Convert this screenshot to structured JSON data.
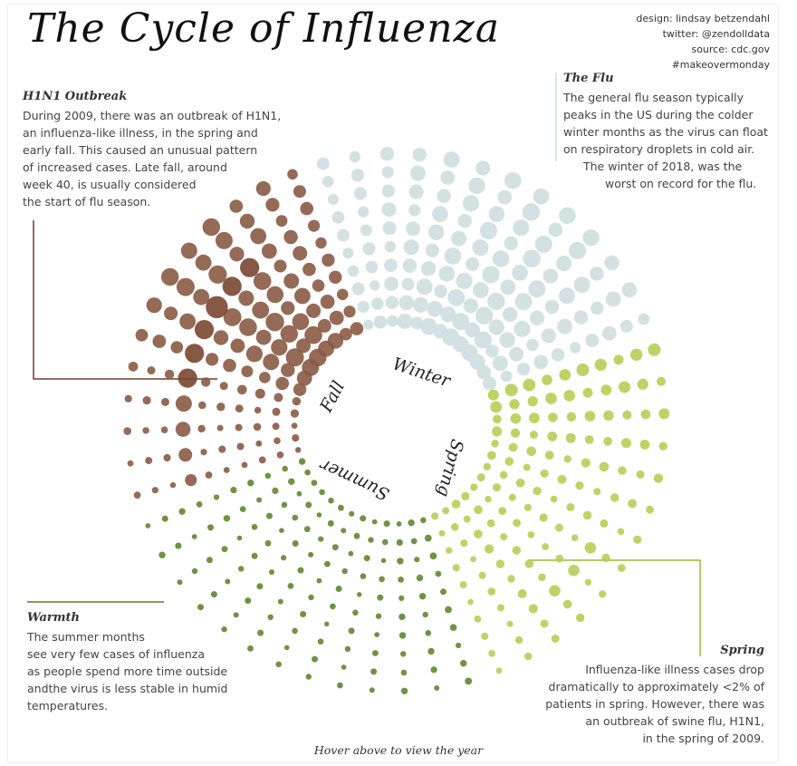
{
  "title": "The Cycle of Influenza",
  "credits": [
    "design: lindsay betzendahl",
    "twitter: @zendolldata",
    "source: cdc.gov",
    "#makeovermonday"
  ],
  "annotations": {
    "h1n1": {
      "heading": "H1N1 Outbreak",
      "lines": [
        "During 2009, there was an outbreak of H1N1,",
        "an influenza-like illness, in the spring and",
        "early fall. This caused an unusual pattern",
        "of increased cases. Late fall, around",
        "week 40, is usually considered",
        "the start of flu season."
      ]
    },
    "flu": {
      "heading": "The Flu",
      "lines": [
        "The general flu season typically",
        "peaks in the US during the colder",
        "winter months as the virus can float",
        "on respiratory droplets in cold air.",
        "The winter of 2018, was the",
        "worst on record for the flu."
      ]
    },
    "warmth": {
      "heading": "Warmth",
      "lines": [
        "The summer months",
        "see very few cases of influenza",
        "as people spend more time outside",
        "andthe virus is less stable in humid",
        "temperatures."
      ]
    },
    "spring": {
      "heading": "Spring",
      "lines": [
        "Influenza-like illness cases drop",
        "dramatically to approximately <2% of",
        "patients in spring. However, there was",
        "an outbreak of swine flu, H1N1,",
        "in the spring of 2009."
      ]
    }
  },
  "hover_text": "Hover above to view the year",
  "chart_data": {
    "type": "radial-bubble",
    "description_angle_unit": "week of year",
    "seasons": [
      {
        "name": "Winter",
        "color": "#d2dfe0"
      },
      {
        "name": "Spring",
        "color": "#b5cf55"
      },
      {
        "name": "Summer",
        "color": "#5f8631"
      },
      {
        "name": "Fall",
        "color": "#8a5a44"
      }
    ],
    "colors": {
      "winter": "#d2dfe0",
      "spring": "#b5cf55",
      "summer": "#5f8631",
      "fall": "#8a5a44",
      "h1n1": "#7a4632",
      "leader_fall": "#6e3e2b",
      "leader_summer": "#5f7a2a",
      "leader_spring": "#9fb830",
      "leader_winter": "#cfdcdc"
    },
    "weeks": 52,
    "ring_count": 10,
    "weekly_ili_percent": [
      5.2,
      5.6,
      5.9,
      6.1,
      6.3,
      6.0,
      5.4,
      4.7,
      3.9,
      3.2,
      2.7,
      2.3,
      2.0,
      1.8,
      1.6,
      1.5,
      1.4,
      1.3,
      1.5,
      1.7,
      1.2,
      1.1,
      1.0,
      0.9,
      0.9,
      0.8,
      0.8,
      0.8,
      0.8,
      0.8,
      0.8,
      0.8,
      0.8,
      0.9,
      0.9,
      1.0,
      1.1,
      1.2,
      1.4,
      2.0,
      3.5,
      5.5,
      6.5,
      6.8,
      6.2,
      5.1,
      4.2,
      3.5,
      3.2,
      3.4,
      4.0,
      4.7
    ]
  }
}
